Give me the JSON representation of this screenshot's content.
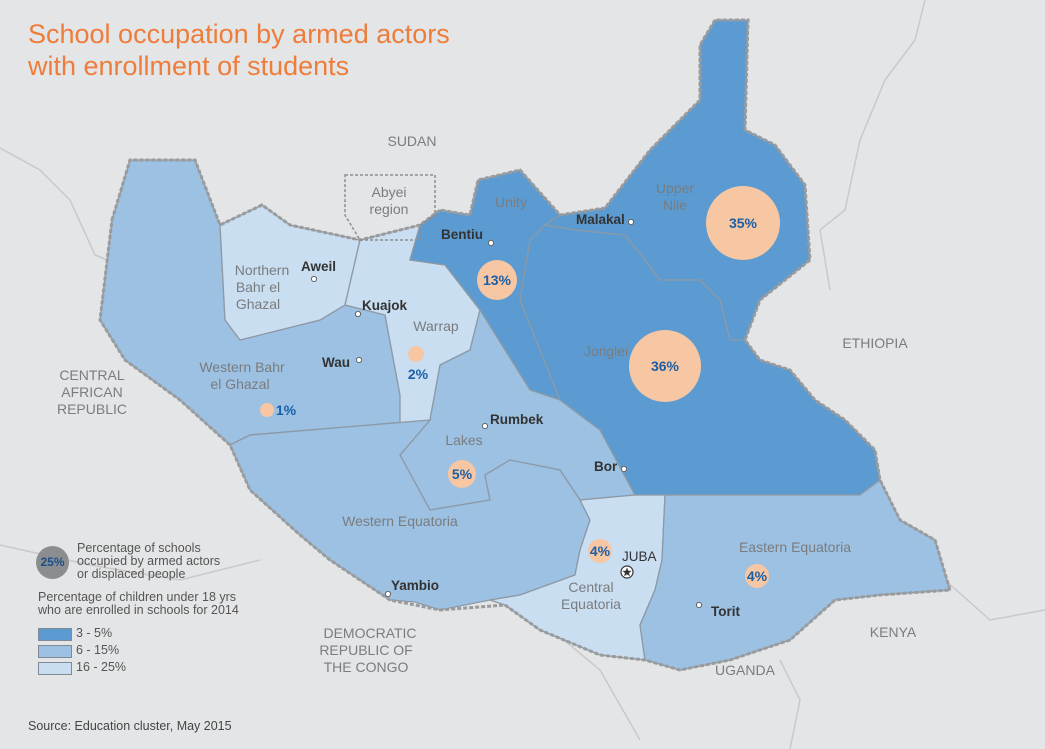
{
  "title_line1": "School occupation by armed actors",
  "title_line2": "with enrollment of students",
  "source": "Source: Education cluster, May 2015",
  "countries": {
    "sudan": "SUDAN",
    "car": [
      "CENTRAL",
      "AFRICAN",
      "REPUBLIC"
    ],
    "ethiopia": "ETHIOPIA",
    "drc": [
      "DEMOCRATIC",
      "REPUBLIC OF",
      "THE CONGO"
    ],
    "kenya": "KENYA",
    "uganda": "UGANDA"
  },
  "abyei": [
    "Abyei",
    "region"
  ],
  "states": {
    "upper_nile": [
      "Upper",
      "Nile"
    ],
    "unity": "Unity",
    "jonglei": "Jonglei",
    "northern_bahr": [
      "Northern",
      "Bahr el",
      "Ghazal"
    ],
    "warrap": "Warrap",
    "western_bahr": [
      "Western Bahr",
      "el Ghazal"
    ],
    "lakes": "Lakes",
    "western_equatoria": "Western Equatoria",
    "central_equatoria": [
      "Central",
      "Equatoria"
    ],
    "eastern_equatoria": "Eastern Equatoria"
  },
  "cities": {
    "malakal": "Malakal",
    "bentiu": "Bentiu",
    "aweil": "Aweil",
    "kuajok": "Kuajok",
    "wau": "Wau",
    "rumbek": "Rumbek",
    "bor": "Bor",
    "juba": "JUBA",
    "yambio": "Yambio",
    "torit": "Torit"
  },
  "occupation": {
    "upper_nile": "35%",
    "jonglei": "36%",
    "unity": "13%",
    "warrap": "2%",
    "western_bahr": "1%",
    "lakes": "5%",
    "central_equatoria": "4%",
    "eastern_equatoria": "4%"
  },
  "legend": {
    "circle_value": "25%",
    "circle_text": [
      "Percentage of schools",
      "occupied by armed actors",
      "or displaced people"
    ],
    "enroll_title": [
      "Percentage of children under 18 yrs",
      "who are enrolled in schools for 2014"
    ],
    "classes": [
      {
        "label": "3 -  5%",
        "color": "#5b9bd1"
      },
      {
        "label": "6 - 15%",
        "color": "#9cc1e3"
      },
      {
        "label": "16 -  25%",
        "color": "#c9def1"
      }
    ]
  },
  "colors": {
    "dark": "#5b9bd1",
    "mid": "#9cc1e3",
    "light": "#c9def1",
    "circle": "#f7c6a3",
    "title": "#ee7d3b",
    "percent_text": "#1a5fa8"
  }
}
